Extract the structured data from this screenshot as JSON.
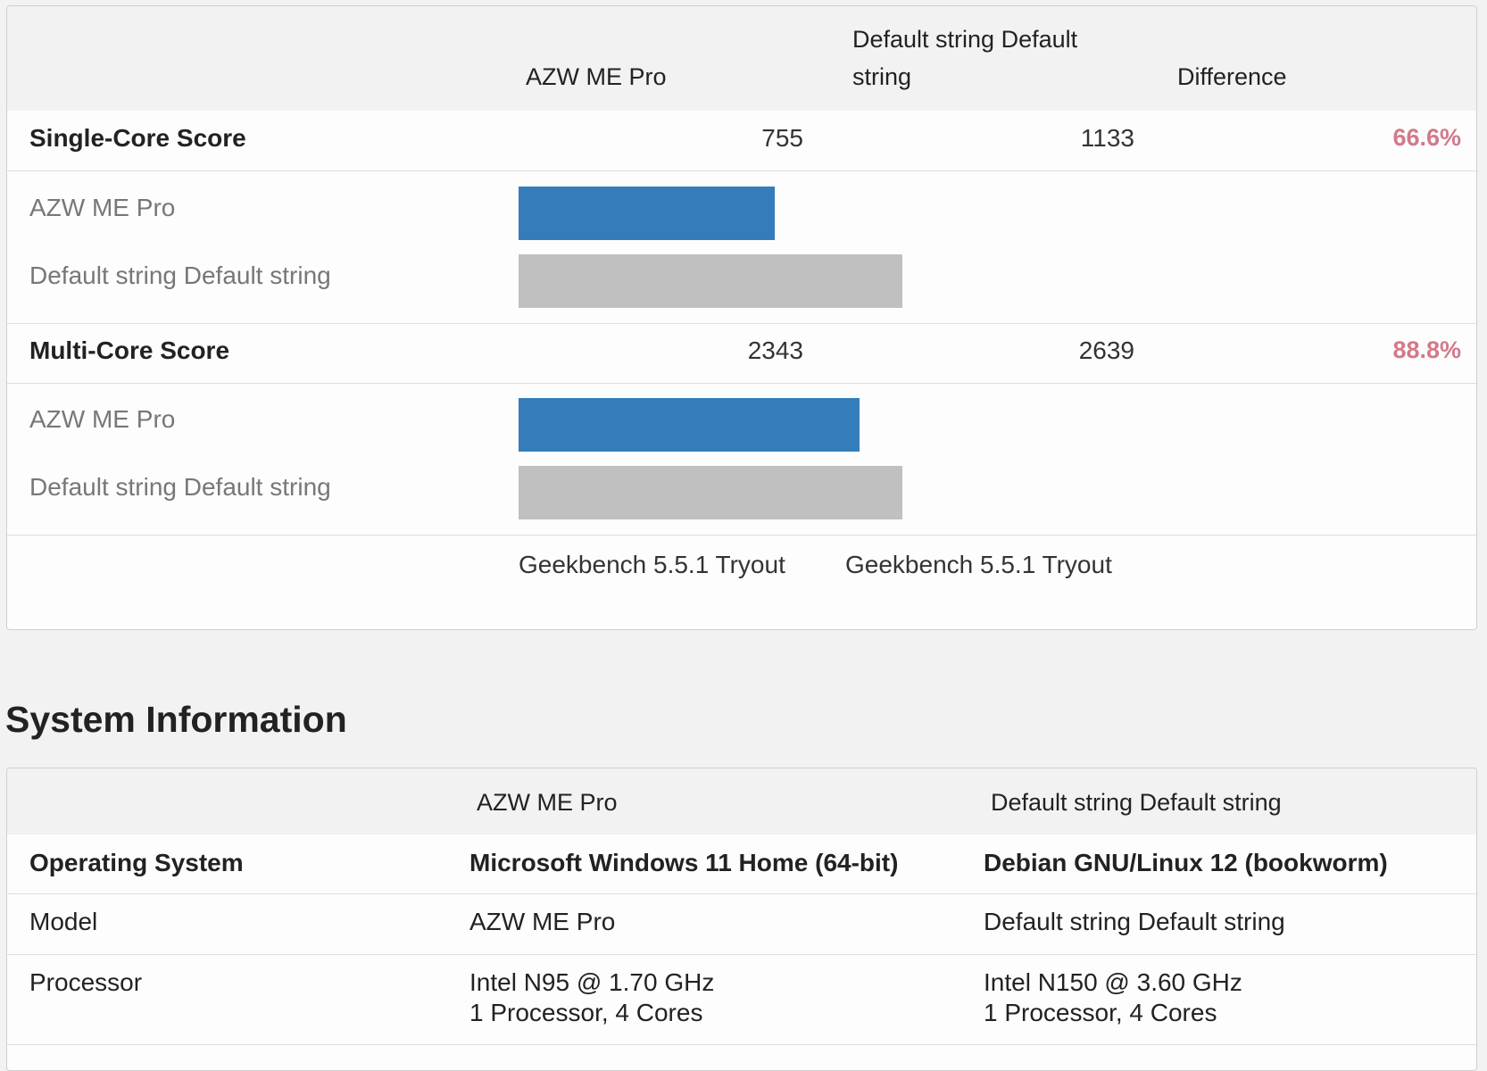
{
  "benchmark": {
    "headers": {
      "device_a": "AZW ME Pro",
      "device_b_line1": "Default string Default",
      "device_b_line2": "string",
      "difference": "Difference"
    },
    "sections": [
      {
        "label": "Single-Core Score",
        "score_a": "755",
        "score_b": "1133",
        "difference": "66.6%",
        "bars": [
          {
            "label": "AZW ME Pro",
            "value": 755,
            "color": "#347dba"
          },
          {
            "label": "Default string Default string",
            "value": 1133,
            "color": "#c0c0c0"
          }
        ]
      },
      {
        "label": "Multi-Core Score",
        "score_a": "2343",
        "score_b": "2639",
        "difference": "88.8%",
        "bars": [
          {
            "label": "AZW ME Pro",
            "value": 2343,
            "color": "#347dba"
          },
          {
            "label": "Default string Default string",
            "value": 2639,
            "color": "#c0c0c0"
          }
        ]
      }
    ],
    "versions": [
      "Geekbench 5.5.1 Tryout",
      "Geekbench 5.5.1 Tryout"
    ]
  },
  "system": {
    "title": "System Information",
    "headers": [
      "AZW ME Pro",
      "Default string Default string"
    ],
    "rows": [
      {
        "label": "Operating System",
        "a": "Microsoft Windows 11 Home (64-bit)",
        "b": "Debian GNU/Linux 12 (bookworm)"
      },
      {
        "label": "Model",
        "a": "AZW ME Pro",
        "b": "Default string Default string"
      },
      {
        "label": "Processor",
        "a": "Intel N95 @ 1.70 GHz",
        "a2": "1 Processor, 4 Cores",
        "b": "Intel N150 @ 3.60 GHz",
        "b2": "1 Processor, 4 Cores"
      }
    ]
  }
}
